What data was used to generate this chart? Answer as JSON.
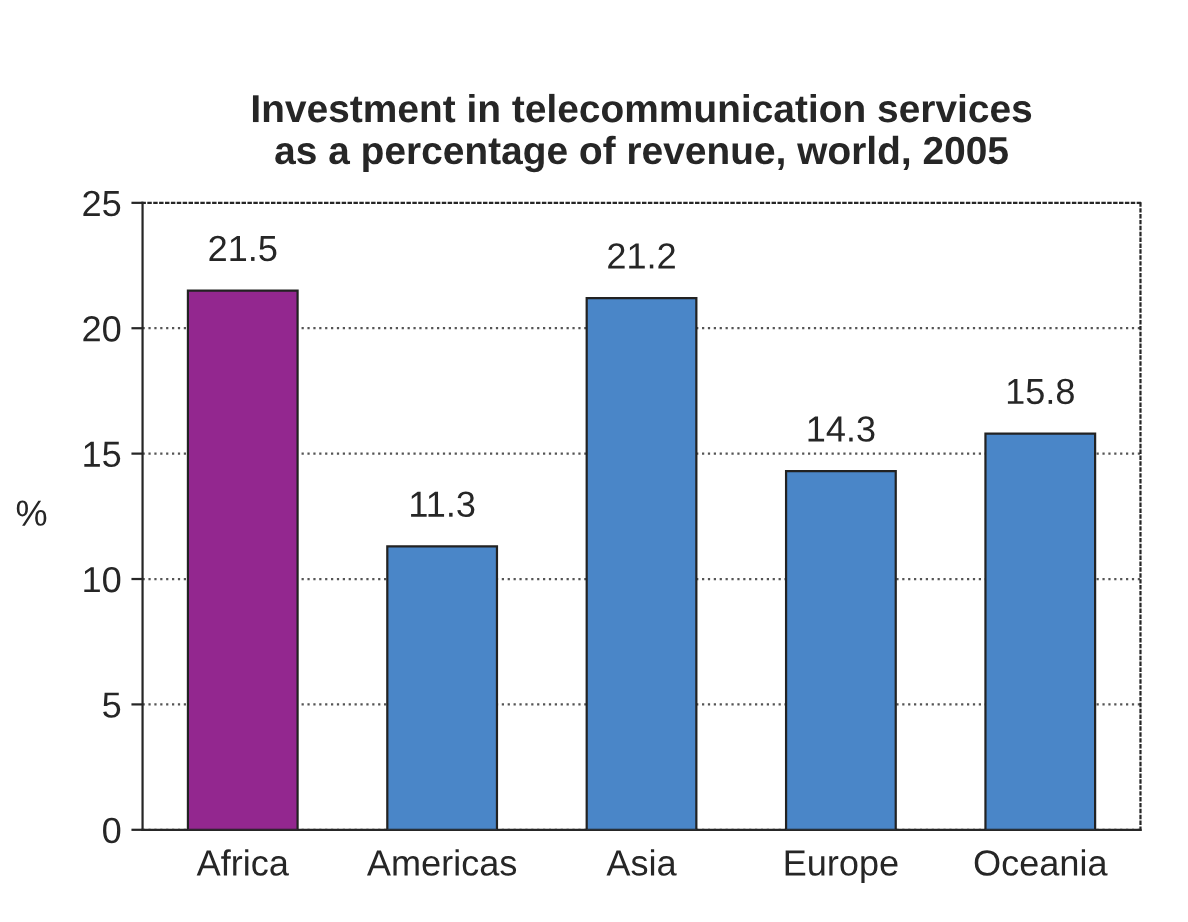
{
  "chart_data": {
    "type": "bar",
    "title": "Investment in telecommunication services\nas a percentage of revenue, world, 2005",
    "categories": [
      "Africa",
      "Americas",
      "Asia",
      "Europe",
      "Oceania"
    ],
    "values": [
      21.5,
      11.3,
      21.2,
      14.3,
      15.8
    ],
    "colors": [
      "#93278f",
      "#4a86c8",
      "#4a86c8",
      "#4a86c8",
      "#4a86c8"
    ],
    "ylabel": "%",
    "ylim": [
      0,
      25
    ],
    "yticks": [
      0,
      5,
      10,
      15,
      20,
      25
    ],
    "grid": "y",
    "data_labels": true
  }
}
